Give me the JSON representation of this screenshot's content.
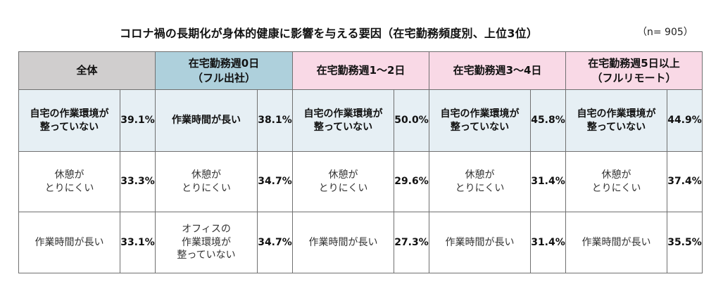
{
  "chart_data": {
    "type": "table",
    "title": "コロナ禍の長期化が身体的健康に影響を与える要因（在宅勤務頻度別、上位3位）",
    "sample_size": "（n= 905）",
    "groups": [
      {
        "name": "全体",
        "header_color": "#d0cece",
        "items": [
          {
            "rank": 1,
            "label": "自宅の作業環境が\n整っていない",
            "value": "39.1%"
          },
          {
            "rank": 2,
            "label": "休憩が\nとりにくい",
            "value": "33.3%"
          },
          {
            "rank": 3,
            "label": "作業時間が長い",
            "value": "33.1%"
          }
        ]
      },
      {
        "name": "在宅勤務週0日\n（フル出社）",
        "header_color": "#aed0dc",
        "items": [
          {
            "rank": 1,
            "label": "作業時間が長い",
            "value": "38.1%"
          },
          {
            "rank": 2,
            "label": "休憩が\nとりにくい",
            "value": "34.7%"
          },
          {
            "rank": 3,
            "label": "オフィスの\n作業環境が\n整っていない",
            "value": "34.7%"
          }
        ]
      },
      {
        "name": "在宅勤務週1～2日",
        "header_color": "#f9d9e6",
        "items": [
          {
            "rank": 1,
            "label": "自宅の作業環境が\n整っていない",
            "value": "50.0%"
          },
          {
            "rank": 2,
            "label": "休憩が\nとりにくい",
            "value": "29.6%"
          },
          {
            "rank": 3,
            "label": "作業時間が長い",
            "value": "27.3%"
          }
        ]
      },
      {
        "name": "在宅勤務週3～4日",
        "header_color": "#f9d9e6",
        "items": [
          {
            "rank": 1,
            "label": "自宅の作業環境が\n整っていない",
            "value": "45.8%"
          },
          {
            "rank": 2,
            "label": "休憩が\nとりにくい",
            "value": "31.4%"
          },
          {
            "rank": 3,
            "label": "作業時間が長い",
            "value": "31.4%"
          }
        ]
      },
      {
        "name": "在宅勤務週5日以上\n（フルリモート）",
        "header_color": "#f9d9e6",
        "items": [
          {
            "rank": 1,
            "label": "自宅の作業環境が\n整っていない",
            "value": "44.9%"
          },
          {
            "rank": 2,
            "label": "休憩が\nとりにくい",
            "value": "37.4%"
          },
          {
            "rank": 3,
            "label": "作業時間が長い",
            "value": "35.5%"
          }
        ]
      }
    ],
    "rank1_row_color": "#e6eff4"
  }
}
